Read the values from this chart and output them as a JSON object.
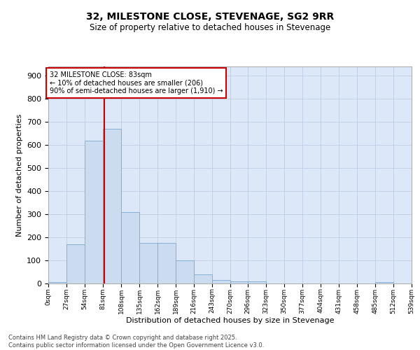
{
  "title": "32, MILESTONE CLOSE, STEVENAGE, SG2 9RR",
  "subtitle": "Size of property relative to detached houses in Stevenage",
  "xlabel": "Distribution of detached houses by size in Stevenage",
  "ylabel": "Number of detached properties",
  "bar_color": "#ccdcf0",
  "bar_edge_color": "#7aaad0",
  "background_color": "#dce8f8",
  "grid_color": "#b8c8e0",
  "annotation_box_color": "#cc0000",
  "vline_color": "#cc0000",
  "annotation_line1": "32 MILESTONE CLOSE: 83sqm",
  "annotation_line2": "← 10% of detached houses are smaller (206)",
  "annotation_line3": "90% of semi-detached houses are larger (1,910) →",
  "property_size": 83,
  "footer1": "Contains HM Land Registry data © Crown copyright and database right 2025.",
  "footer2": "Contains public sector information licensed under the Open Government Licence v3.0.",
  "bin_edges": [
    0,
    27,
    54,
    81,
    108,
    135,
    162,
    189,
    216,
    243,
    270,
    296,
    323,
    350,
    377,
    404,
    431,
    458,
    485,
    512,
    539
  ],
  "bin_labels": [
    "0sqm",
    "27sqm",
    "54sqm",
    "81sqm",
    "108sqm",
    "135sqm",
    "162sqm",
    "189sqm",
    "216sqm",
    "243sqm",
    "270sqm",
    "296sqm",
    "323sqm",
    "350sqm",
    "377sqm",
    "404sqm",
    "431sqm",
    "458sqm",
    "485sqm",
    "512sqm",
    "539sqm"
  ],
  "bar_heights": [
    5,
    170,
    620,
    670,
    310,
    175,
    175,
    100,
    40,
    15,
    10,
    10,
    0,
    0,
    0,
    0,
    0,
    0,
    5,
    0
  ],
  "ylim": [
    0,
    940
  ],
  "yticks": [
    0,
    100,
    200,
    300,
    400,
    500,
    600,
    700,
    800,
    900
  ]
}
